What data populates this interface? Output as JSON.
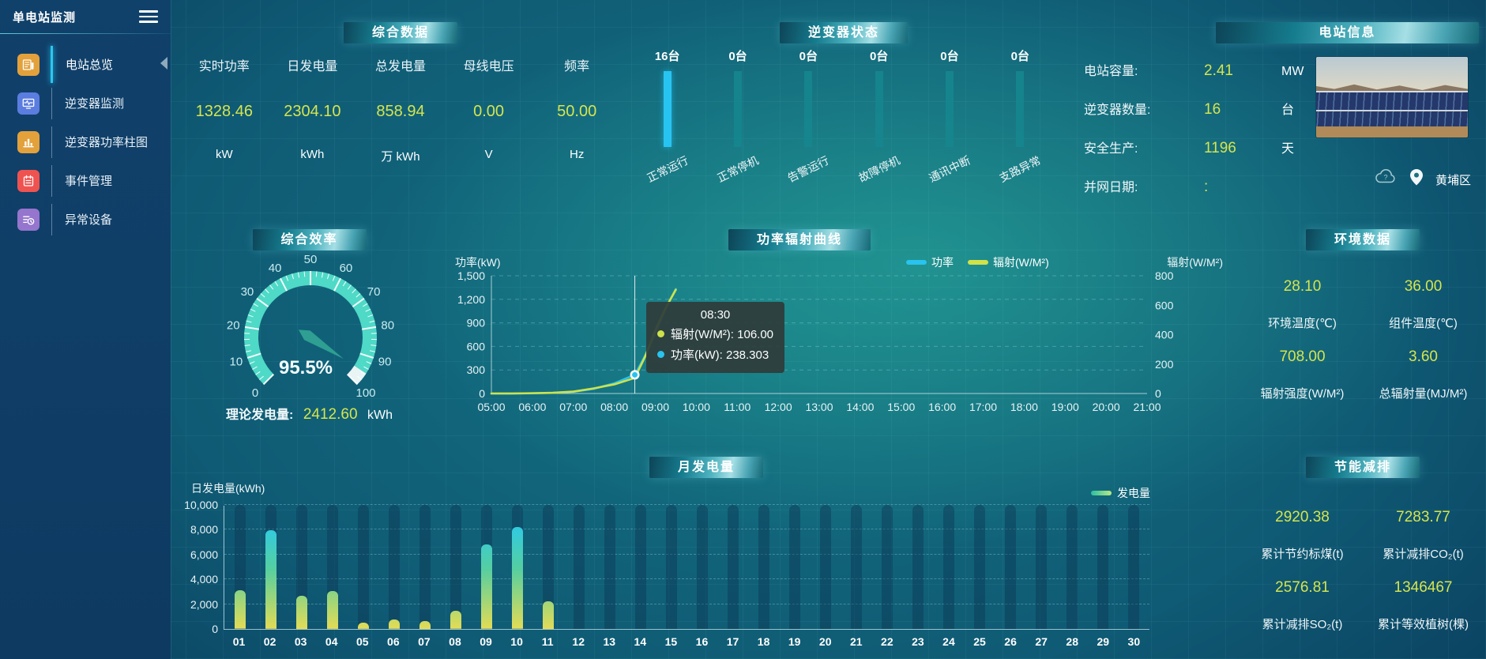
{
  "sidebar": {
    "app_title": "单电站监测",
    "items": [
      {
        "label": "电站总览",
        "icon": "overview",
        "color": "#e3a13c",
        "active": true
      },
      {
        "label": "逆变器监测",
        "icon": "inverter-monitor",
        "color": "#5b7de0",
        "active": false
      },
      {
        "label": "逆变器功率柱图",
        "icon": "power-bars",
        "color": "#e3a13c",
        "active": false
      },
      {
        "label": "事件管理",
        "icon": "event-management",
        "color": "#ef5350",
        "active": false
      },
      {
        "label": "异常设备",
        "icon": "abnormal-device",
        "color": "#9575cd",
        "active": false
      }
    ]
  },
  "panels": {
    "summary": {
      "title": "综合数据",
      "metrics": [
        {
          "label": "实时功率",
          "value": "1328.46",
          "unit": "kW"
        },
        {
          "label": "日发电量",
          "value": "2304.10",
          "unit": "kWh"
        },
        {
          "label": "总发电量",
          "value": "858.94",
          "unit": "万 kWh"
        },
        {
          "label": "母线电压",
          "value": "0.00",
          "unit": "V"
        },
        {
          "label": "频率",
          "value": "50.00",
          "unit": "Hz"
        }
      ]
    },
    "inverter_status": {
      "title": "逆变器状态"
    },
    "station_info": {
      "title": "电站信息",
      "rows": [
        {
          "label": "电站容量:",
          "value": "2.41",
          "unit": "MW"
        },
        {
          "label": "逆变器数量:",
          "value": "16",
          "unit": "台"
        },
        {
          "label": "安全生产:",
          "value": "1196",
          "unit": "天"
        },
        {
          "label": "并网日期: ",
          "value": ":",
          "unit": ""
        }
      ],
      "location": "黄埔区"
    },
    "efficiency": {
      "title": "综合效率"
    },
    "power_radiation": {
      "title": "功率辐射曲线"
    },
    "environment": {
      "title": "环境数据",
      "metrics": [
        {
          "value": "28.10",
          "label": "环境温度(℃)"
        },
        {
          "value": "36.00",
          "label": "组件温度(℃)"
        },
        {
          "value": "708.00",
          "label": "辐射强度(W/M²)"
        },
        {
          "value": "3.60",
          "label": "总辐射量(MJ/M²)"
        }
      ]
    },
    "monthly": {
      "title": "月发电量"
    },
    "energy_saving": {
      "title": "节能减排",
      "metrics": [
        {
          "value": "2920.38",
          "label": "累计节约标煤(t)"
        },
        {
          "value": "7283.77",
          "label": "累计减排CO₂(t)"
        },
        {
          "value": "2576.81",
          "label": "累计减排SO₂(t)"
        },
        {
          "value": "1346467",
          "label": "累计等效植树(棵)"
        }
      ]
    }
  },
  "chart_data": [
    {
      "id": "efficiency-gauge",
      "type": "gauge",
      "title": "综合效率",
      "value": 95.5,
      "unit": "%",
      "min": 0,
      "max": 100,
      "major_ticks": [
        0,
        10,
        20,
        30,
        40,
        50,
        60,
        70,
        80,
        90,
        100
      ],
      "arc_color": "#4fd9c7",
      "rest_color": "#e9f4f5",
      "footer_label": "理论发电量:",
      "footer_value": "2412.60",
      "footer_unit": "kWh"
    },
    {
      "id": "power-radiation",
      "type": "line",
      "title": "功率辐射曲线",
      "x_hours": [
        5,
        5.5,
        6,
        6.5,
        7,
        7.5,
        8,
        8.5,
        8.75,
        9,
        9.25,
        9.5
      ],
      "series": [
        {
          "name": "功率",
          "axis": "left",
          "color": "#29c3ee",
          "values": [
            0,
            1,
            3,
            8,
            22,
            60,
            130,
            238.303,
            480,
            760,
            1080,
            1330
          ]
        },
        {
          "name": "辐射(W/M²)",
          "axis": "right",
          "color": "#cfe24a",
          "values": [
            0,
            0,
            2,
            5,
            13,
            35,
            62,
            106,
            250,
            430,
            580,
            705
          ]
        }
      ],
      "left_axis": {
        "label": "功率(kW)",
        "max": 1500,
        "tick_values": [
          0,
          300,
          600,
          900,
          1200,
          1500
        ],
        "ticks": [
          "0",
          "300",
          "600",
          "900",
          "1,200",
          "1,500"
        ]
      },
      "right_axis": {
        "label": "辐射(W/M²)",
        "max": 800,
        "tick_values": [
          0,
          200,
          400,
          600,
          800
        ],
        "ticks": [
          "0",
          "200",
          "400",
          "600",
          "800"
        ]
      },
      "x_ticks": [
        "05:00",
        "06:00",
        "07:00",
        "08:00",
        "09:00",
        "10:00",
        "11:00",
        "12:00",
        "13:00",
        "14:00",
        "15:00",
        "16:00",
        "17:00",
        "18:00",
        "19:00",
        "20:00",
        "21:00"
      ],
      "tooltip": {
        "time": "08:30",
        "x_hour": 8.5,
        "point_power": 238.303,
        "rows": [
          {
            "name": "辐射(W/M²)",
            "value": "106.00",
            "color": "#cfe24a"
          },
          {
            "name": "功率(kW)",
            "value": "238.303",
            "color": "#29c3ee"
          }
        ]
      }
    },
    {
      "id": "monthly-generation",
      "type": "bar",
      "title": "月发电量",
      "ylabel": "日发电量(kWh)",
      "legend": "发电量",
      "ymax": 10000,
      "y_tick_values": [
        0,
        2000,
        4000,
        6000,
        8000,
        10000
      ],
      "y_ticks": [
        "0",
        "2,000",
        "4,000",
        "6,000",
        "8,000",
        "10,000"
      ],
      "categories": [
        "01",
        "02",
        "03",
        "04",
        "05",
        "06",
        "07",
        "08",
        "09",
        "10",
        "11",
        "12",
        "13",
        "14",
        "15",
        "16",
        "17",
        "18",
        "19",
        "20",
        "21",
        "22",
        "23",
        "24",
        "25",
        "26",
        "27",
        "28",
        "29",
        "30"
      ],
      "values": [
        3100,
        7950,
        2700,
        3050,
        500,
        750,
        650,
        1450,
        6800,
        8200,
        2250,
        0,
        0,
        0,
        0,
        0,
        0,
        0,
        0,
        0,
        0,
        0,
        0,
        0,
        0,
        0,
        0,
        0,
        0,
        0
      ]
    },
    {
      "id": "inverter-status",
      "type": "bar",
      "title": "逆变器状态",
      "unit": "台",
      "categories": [
        "正常运行",
        "正常停机",
        "告警运行",
        "故障停机",
        "通讯中断",
        "支路异常"
      ],
      "counts": [
        16,
        0,
        0,
        0,
        0,
        0
      ]
    }
  ]
}
